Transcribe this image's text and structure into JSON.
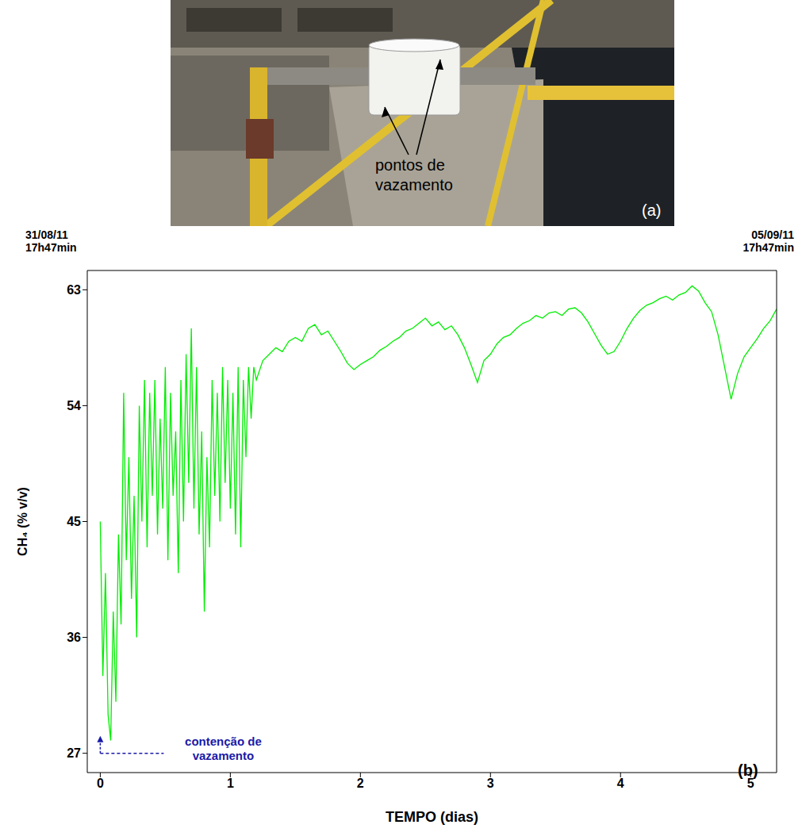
{
  "photo": {
    "label": "pontos de vazamento",
    "panel_letter": "(a)"
  },
  "chart_data": {
    "type": "line",
    "panel_letter": "(b)",
    "start_label": [
      "31/08/11",
      "17h47min"
    ],
    "end_label": [
      "05/09/11",
      "17h47min"
    ],
    "x_label": "TEMPO (dias)",
    "y_label": "CH₄ (% v/v)",
    "xlim": [
      -0.1,
      5.2
    ],
    "xticks": [
      0,
      1,
      2,
      3,
      4,
      5
    ],
    "ylim": [
      25.5,
      64.5
    ],
    "yticks": [
      27,
      36,
      45,
      54,
      63
    ],
    "color": "#00ee00",
    "annotations": [
      {
        "text": "contenção de vazamento",
        "x": 0,
        "y": 27,
        "color": "#1a1aa8"
      }
    ],
    "x": [
      0,
      0.02,
      0.04,
      0.06,
      0.08,
      0.1,
      0.12,
      0.14,
      0.16,
      0.18,
      0.2,
      0.22,
      0.24,
      0.26,
      0.28,
      0.3,
      0.32,
      0.34,
      0.36,
      0.38,
      0.4,
      0.42,
      0.44,
      0.46,
      0.48,
      0.5,
      0.52,
      0.54,
      0.56,
      0.58,
      0.6,
      0.62,
      0.64,
      0.66,
      0.68,
      0.7,
      0.72,
      0.74,
      0.76,
      0.78,
      0.8,
      0.82,
      0.84,
      0.86,
      0.88,
      0.9,
      0.92,
      0.94,
      0.96,
      0.98,
      1.0,
      1.02,
      1.04,
      1.06,
      1.08,
      1.1,
      1.12,
      1.14,
      1.16,
      1.18,
      1.2,
      1.25,
      1.3,
      1.35,
      1.4,
      1.45,
      1.5,
      1.55,
      1.6,
      1.65,
      1.7,
      1.75,
      1.8,
      1.85,
      1.9,
      1.95,
      2.0,
      2.05,
      2.1,
      2.15,
      2.2,
      2.25,
      2.3,
      2.35,
      2.4,
      2.45,
      2.5,
      2.55,
      2.6,
      2.65,
      2.7,
      2.75,
      2.8,
      2.85,
      2.9,
      2.95,
      3.0,
      3.05,
      3.1,
      3.15,
      3.2,
      3.25,
      3.3,
      3.35,
      3.4,
      3.45,
      3.5,
      3.55,
      3.6,
      3.65,
      3.7,
      3.75,
      3.8,
      3.85,
      3.9,
      3.95,
      4.0,
      4.05,
      4.1,
      4.15,
      4.2,
      4.25,
      4.3,
      4.35,
      4.4,
      4.45,
      4.5,
      4.55,
      4.6,
      4.65,
      4.7,
      4.75,
      4.8,
      4.85,
      4.9,
      4.95,
      5.0,
      5.05,
      5.1,
      5.15,
      5.2
    ],
    "values": [
      45,
      33,
      41,
      30,
      28,
      38,
      31,
      44,
      37,
      55,
      42,
      50,
      39,
      47,
      36,
      54,
      45,
      56,
      43,
      55,
      47,
      56,
      44,
      53,
      46,
      57,
      42,
      55,
      47,
      52,
      41,
      56,
      45,
      58,
      48,
      60,
      46,
      57,
      44,
      52,
      38,
      50,
      43,
      56,
      47,
      55,
      45,
      57,
      48,
      56,
      46,
      55,
      44,
      57,
      43,
      56,
      50,
      57,
      53,
      57,
      56,
      57.5,
      58,
      58.5,
      58.2,
      59,
      59.3,
      59,
      60,
      60.3,
      59.5,
      59.8,
      59,
      58.2,
      57.3,
      56.8,
      57.2,
      57.5,
      57.8,
      58.3,
      58.6,
      59,
      59.3,
      59.8,
      60,
      60.4,
      60.8,
      60.2,
      60.5,
      59.9,
      60.2,
      59.5,
      58.5,
      57.2,
      55.8,
      57.5,
      58,
      58.8,
      59.3,
      59.5,
      60,
      60.4,
      60.6,
      61,
      60.8,
      61.2,
      61.3,
      61,
      61.5,
      61.6,
      61.2,
      60.5,
      59.6,
      58.7,
      58,
      58.2,
      59,
      60,
      60.8,
      61.4,
      61.8,
      62,
      62.3,
      62.5,
      62.2,
      62.6,
      62.8,
      63.3,
      62.9,
      62,
      61.3,
      59.5,
      57,
      54.5,
      56.5,
      57.8,
      58.5,
      59.2,
      60,
      60.6,
      61.5
    ]
  }
}
